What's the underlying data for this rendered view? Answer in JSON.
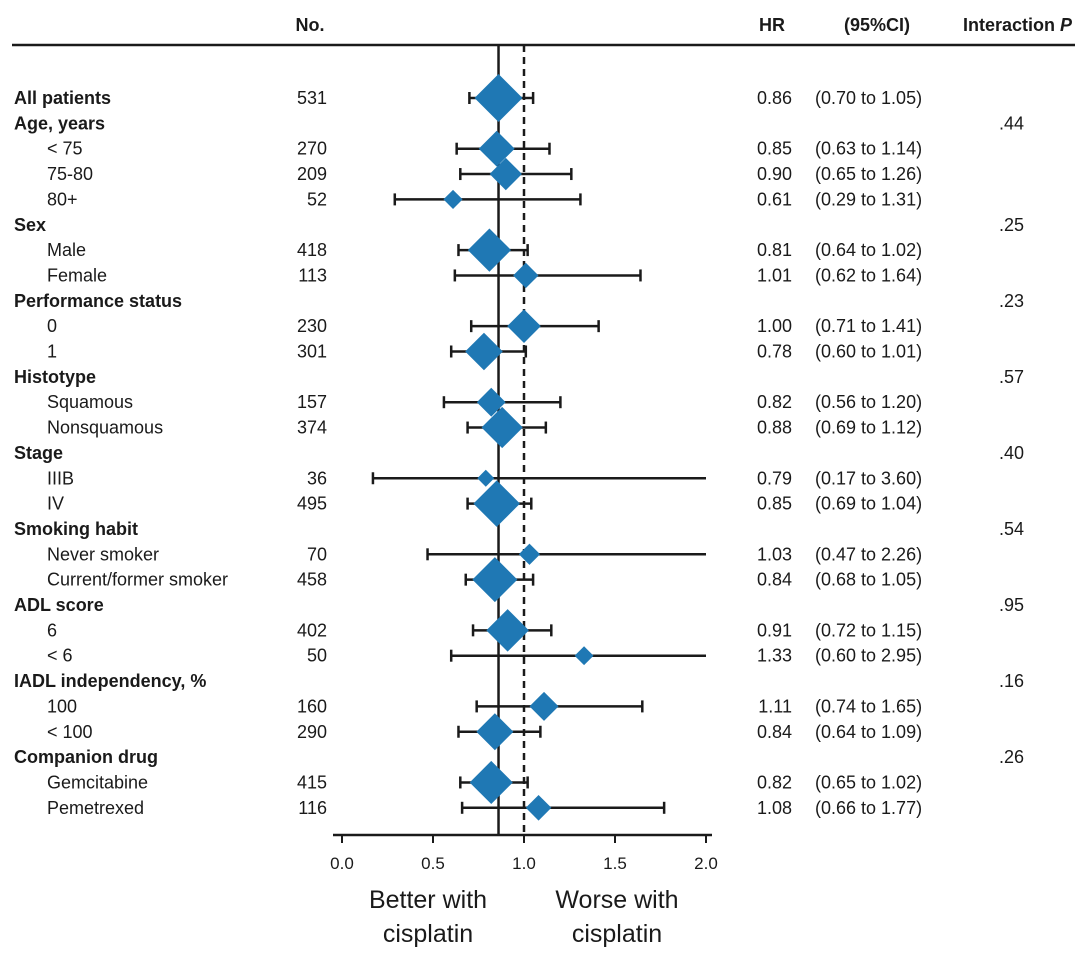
{
  "chart_data": {
    "type": "forest",
    "headers": {
      "n": "No.",
      "hr": "HR",
      "ci": "(95%CI)",
      "interaction": "Interaction",
      "interaction_p": "P"
    },
    "x_axis": {
      "range": [
        0.0,
        2.0
      ],
      "ticks": [
        "0.0",
        "0.5",
        "1.0",
        "1.5",
        "2.0"
      ],
      "tick_values": [
        0.0,
        0.5,
        1.0,
        1.5,
        2.0
      ],
      "reference_line": 1.0,
      "overall_line": 0.86,
      "left_label": [
        "Better with",
        "cisplatin"
      ],
      "right_label": [
        "Worse with",
        "cisplatin"
      ]
    },
    "rows": [
      {
        "label": "All patients",
        "kind": "group",
        "n": "531",
        "hr": 0.86,
        "lo": 0.7,
        "hi": 1.05,
        "hr_text": "0.86",
        "ci_text": "(0.70 to 1.05)",
        "p": ""
      },
      {
        "label": "Age, years",
        "kind": "group",
        "p": ".44"
      },
      {
        "label": "< 75",
        "kind": "sub",
        "n": "270",
        "hr": 0.85,
        "lo": 0.63,
        "hi": 1.14,
        "hr_text": "0.85",
        "ci_text": "(0.63 to 1.14)"
      },
      {
        "label": "75-80",
        "kind": "sub",
        "n": "209",
        "hr": 0.9,
        "lo": 0.65,
        "hi": 1.26,
        "hr_text": "0.90",
        "ci_text": "(0.65 to 1.26)"
      },
      {
        "label": "80+",
        "kind": "sub",
        "n": "52",
        "hr": 0.61,
        "lo": 0.29,
        "hi": 1.31,
        "hr_text": "0.61",
        "ci_text": "(0.29 to 1.31)"
      },
      {
        "label": "Sex",
        "kind": "group",
        "p": ".25"
      },
      {
        "label": "Male",
        "kind": "sub",
        "n": "418",
        "hr": 0.81,
        "lo": 0.64,
        "hi": 1.02,
        "hr_text": "0.81",
        "ci_text": "(0.64 to 1.02)"
      },
      {
        "label": "Female",
        "kind": "sub",
        "n": "113",
        "hr": 1.01,
        "lo": 0.62,
        "hi": 1.64,
        "hr_text": "1.01",
        "ci_text": "(0.62 to 1.64)"
      },
      {
        "label": "Performance status",
        "kind": "group",
        "p": ".23"
      },
      {
        "label": "0",
        "kind": "sub",
        "n": "230",
        "hr": 1.0,
        "lo": 0.71,
        "hi": 1.41,
        "hr_text": "1.00",
        "ci_text": "(0.71 to 1.41)"
      },
      {
        "label": "1",
        "kind": "sub",
        "n": "301",
        "hr": 0.78,
        "lo": 0.6,
        "hi": 1.01,
        "hr_text": "0.78",
        "ci_text": "(0.60 to 1.01)"
      },
      {
        "label": "Histotype",
        "kind": "group",
        "p": ".57"
      },
      {
        "label": "Squamous",
        "kind": "sub",
        "n": "157",
        "hr": 0.82,
        "lo": 0.56,
        "hi": 1.2,
        "hr_text": "0.82",
        "ci_text": "(0.56 to 1.20)"
      },
      {
        "label": "Nonsquamous",
        "kind": "sub",
        "n": "374",
        "hr": 0.88,
        "lo": 0.69,
        "hi": 1.12,
        "hr_text": "0.88",
        "ci_text": "(0.69 to 1.12)"
      },
      {
        "label": "Stage",
        "kind": "group",
        "p": ".40"
      },
      {
        "label": "IIIB",
        "kind": "sub",
        "n": "36",
        "hr": 0.79,
        "lo": 0.17,
        "hi": 3.6,
        "hr_text": "0.79",
        "ci_text": "(0.17 to 3.60)"
      },
      {
        "label": "IV",
        "kind": "sub",
        "n": "495",
        "hr": 0.85,
        "lo": 0.69,
        "hi": 1.04,
        "hr_text": "0.85",
        "ci_text": "(0.69 to 1.04)"
      },
      {
        "label": "Smoking habit",
        "kind": "group",
        "p": ".54"
      },
      {
        "label": "Never smoker",
        "kind": "sub",
        "n": "70",
        "hr": 1.03,
        "lo": 0.47,
        "hi": 2.26,
        "hr_text": "1.03",
        "ci_text": "(0.47 to 2.26)"
      },
      {
        "label": "Current/former smoker",
        "kind": "sub",
        "n": "458",
        "hr": 0.84,
        "lo": 0.68,
        "hi": 1.05,
        "hr_text": "0.84",
        "ci_text": "(0.68 to 1.05)"
      },
      {
        "label": "ADL score",
        "kind": "group",
        "p": ".95"
      },
      {
        "label": "6",
        "kind": "sub",
        "n": "402",
        "hr": 0.91,
        "lo": 0.72,
        "hi": 1.15,
        "hr_text": "0.91",
        "ci_text": "(0.72 to 1.15)"
      },
      {
        "label": "< 6",
        "kind": "sub",
        "n": "50",
        "hr": 1.33,
        "lo": 0.6,
        "hi": 2.95,
        "hr_text": "1.33",
        "ci_text": "(0.60 to 2.95)"
      },
      {
        "label": "IADL independency, %",
        "kind": "group",
        "p": ".16"
      },
      {
        "label": "100",
        "kind": "sub",
        "n": "160",
        "hr": 1.11,
        "lo": 0.74,
        "hi": 1.65,
        "hr_text": "1.11",
        "ci_text": "(0.74 to 1.65)"
      },
      {
        "label": "< 100",
        "kind": "sub",
        "n": "290",
        "hr": 0.84,
        "lo": 0.64,
        "hi": 1.09,
        "hr_text": "0.84",
        "ci_text": "(0.64 to 1.09)"
      },
      {
        "label": "Companion drug",
        "kind": "group",
        "p": ".26"
      },
      {
        "label": "Gemcitabine",
        "kind": "sub",
        "n": "415",
        "hr": 0.82,
        "lo": 0.65,
        "hi": 1.02,
        "hr_text": "0.82",
        "ci_text": "(0.65 to 1.02)"
      },
      {
        "label": "Pemetrexed",
        "kind": "sub",
        "n": "116",
        "hr": 1.08,
        "lo": 0.66,
        "hi": 1.77,
        "hr_text": "1.08",
        "ci_text": "(0.66 to 1.77)"
      }
    ],
    "colors": {
      "marker": "#1f78b4",
      "line": "#1a1a1a"
    }
  }
}
